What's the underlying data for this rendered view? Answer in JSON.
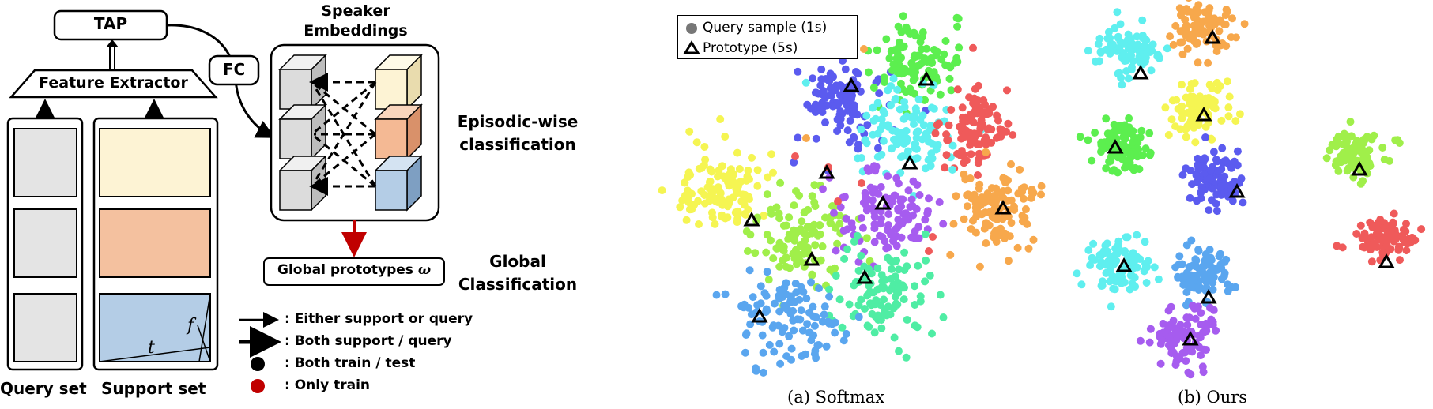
{
  "architecture": {
    "tap_label": "TAP",
    "fc_label": "FC",
    "feature_extractor_label": "Feature Extractor",
    "speaker_embeddings_label": "Speaker\nEmbeddings",
    "episodic_label": "Episodic-wise\nclassification",
    "global_prototypes_label": "Global prototypes",
    "omega_symbol": "ω",
    "global_classification_label": "Global\nClassification",
    "query_set_label": "Query set",
    "support_set_label": "Support set",
    "axis_t": "t",
    "axis_f": "f",
    "support_colors": [
      "#fdf3d4",
      "#f4c19f",
      "#b4cde6"
    ],
    "query_color": "#e4e4e4",
    "embedding_colors": [
      "#fdf3d4",
      "#f4b994",
      "#b4cde6"
    ]
  },
  "arrow_legend": {
    "items": [
      {
        "symbol": "arrow-thin",
        "text": ":  Either support or query"
      },
      {
        "symbol": "arrow-bold",
        "text": ":  Both support / query"
      },
      {
        "symbol": "dot-black",
        "text": ":  Both train / test",
        "color": "#000000"
      },
      {
        "symbol": "dot-red",
        "text": ":  Only train",
        "color": "#c00000"
      }
    ]
  },
  "plots": {
    "legend": {
      "query": "Query sample (1s)",
      "prototype": "Prototype (5s)"
    },
    "softmax_caption": "(a) Softmax",
    "ours_caption": "(b) Ours",
    "cluster_colors": [
      "#5b5bef",
      "#5cef4f",
      "#5fefef",
      "#ef5a5a",
      "#f5f552",
      "#a0ef4a",
      "#a65cef",
      "#4feda4",
      "#f7a84c",
      "#5aa6ef"
    ]
  }
}
